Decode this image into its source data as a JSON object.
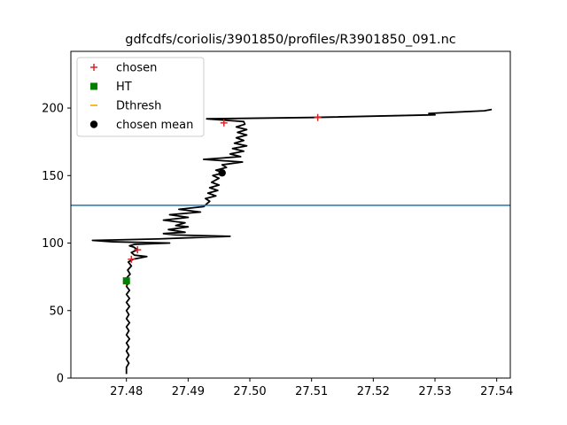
{
  "chart_data": {
    "type": "scatter",
    "title": "gdfcdfs/coriolis/3901850/profiles/R3901850_091.nc",
    "xlabel": "",
    "ylabel": "",
    "xlim": [
      27.471,
      27.5422
    ],
    "ylim": [
      0,
      242
    ],
    "xticks": [
      27.48,
      27.49,
      27.5,
      27.51,
      27.52,
      27.53,
      27.54
    ],
    "xtick_labels": [
      "27.48",
      "27.49",
      "27.50",
      "27.51",
      "27.52",
      "27.53",
      "27.54"
    ],
    "yticks": [
      0,
      50,
      100,
      150,
      200
    ],
    "ytick_labels": [
      "0",
      "50",
      "100",
      "150",
      "200"
    ],
    "grid": false,
    "legend_position": "top-left",
    "legend": [
      {
        "label": "chosen",
        "marker": "plus",
        "color": "#d62728"
      },
      {
        "label": "HT",
        "marker": "square",
        "color": "#008000"
      },
      {
        "label": "Dthresh",
        "marker": "hline",
        "color": "#ffa500"
      },
      {
        "label": "chosen mean",
        "marker": "circle",
        "color": "#000000"
      }
    ],
    "profile": {
      "color": "#000000",
      "points": [
        [
          27.48,
          3
        ],
        [
          27.48,
          8
        ],
        [
          27.4804,
          11
        ],
        [
          27.48,
          14
        ],
        [
          27.4804,
          17
        ],
        [
          27.48,
          20
        ],
        [
          27.4804,
          23
        ],
        [
          27.48,
          26
        ],
        [
          27.4805,
          29
        ],
        [
          27.48,
          32
        ],
        [
          27.4804,
          35
        ],
        [
          27.48,
          38
        ],
        [
          27.4805,
          41
        ],
        [
          27.48,
          44
        ],
        [
          27.4804,
          47
        ],
        [
          27.48,
          50
        ],
        [
          27.4805,
          53
        ],
        [
          27.48,
          56
        ],
        [
          27.4805,
          59
        ],
        [
          27.48,
          62
        ],
        [
          27.4805,
          65
        ],
        [
          27.48,
          68
        ],
        [
          27.4804,
          71
        ],
        [
          27.48,
          74
        ],
        [
          27.4806,
          77
        ],
        [
          27.4802,
          80
        ],
        [
          27.4808,
          83
        ],
        [
          27.4803,
          86
        ],
        [
          27.4811,
          88
        ],
        [
          27.4833,
          90
        ],
        [
          27.4813,
          91
        ],
        [
          27.4808,
          93
        ],
        [
          27.4818,
          95
        ],
        [
          27.4812,
          97
        ],
        [
          27.4805,
          98
        ],
        [
          27.4813,
          99
        ],
        [
          27.487,
          100
        ],
        [
          27.4775,
          101
        ],
        [
          27.4745,
          102
        ],
        [
          27.485,
          103
        ],
        [
          27.4968,
          105
        ],
        [
          27.488,
          106
        ],
        [
          27.486,
          107
        ],
        [
          27.4895,
          108
        ],
        [
          27.4868,
          110
        ],
        [
          27.49,
          112
        ],
        [
          27.488,
          113
        ],
        [
          27.4895,
          115
        ],
        [
          27.486,
          117
        ],
        [
          27.49,
          119
        ],
        [
          27.487,
          121
        ],
        [
          27.492,
          123
        ],
        [
          27.4885,
          125
        ],
        [
          27.4925,
          127
        ],
        [
          27.493,
          129
        ],
        [
          27.4935,
          131
        ],
        [
          27.4928,
          133
        ],
        [
          27.4945,
          135
        ],
        [
          27.4932,
          137
        ],
        [
          27.4948,
          139
        ],
        [
          27.4935,
          141
        ],
        [
          27.495,
          143
        ],
        [
          27.4938,
          145
        ],
        [
          27.495,
          148
        ],
        [
          27.494,
          150
        ],
        [
          27.4958,
          152
        ],
        [
          27.4945,
          154
        ],
        [
          27.4962,
          156
        ],
        [
          27.4955,
          158
        ],
        [
          27.4988,
          160
        ],
        [
          27.4925,
          162
        ],
        [
          27.4985,
          164
        ],
        [
          27.4968,
          166
        ],
        [
          27.499,
          168
        ],
        [
          27.4972,
          170
        ],
        [
          27.4995,
          172
        ],
        [
          27.4975,
          174
        ],
        [
          27.499,
          176
        ],
        [
          27.4978,
          178
        ],
        [
          27.4995,
          180
        ],
        [
          27.498,
          182
        ],
        [
          27.4995,
          184
        ],
        [
          27.4978,
          186
        ],
        [
          27.4992,
          188
        ],
        [
          27.499,
          190
        ],
        [
          27.493,
          192
        ],
        [
          27.51,
          193
        ],
        [
          27.53,
          195
        ],
        [
          27.529,
          196
        ],
        [
          27.538,
          198
        ],
        [
          27.5392,
          199
        ]
      ]
    },
    "series": [
      {
        "name": "chosen",
        "marker": "plus",
        "color": "#d62728",
        "points": [
          [
            27.48,
            71
          ],
          [
            27.4808,
            88
          ],
          [
            27.4818,
            95
          ],
          [
            27.4958,
            189
          ],
          [
            27.511,
            193
          ]
        ]
      },
      {
        "name": "HT",
        "marker": "square",
        "color": "#008000",
        "points": [
          [
            27.48,
            72
          ]
        ]
      },
      {
        "name": "chosen mean",
        "marker": "circle",
        "color": "#000000",
        "points": [
          [
            27.4955,
            152
          ]
        ]
      }
    ],
    "hline": {
      "y": 128,
      "color": "#1f77b4"
    }
  }
}
